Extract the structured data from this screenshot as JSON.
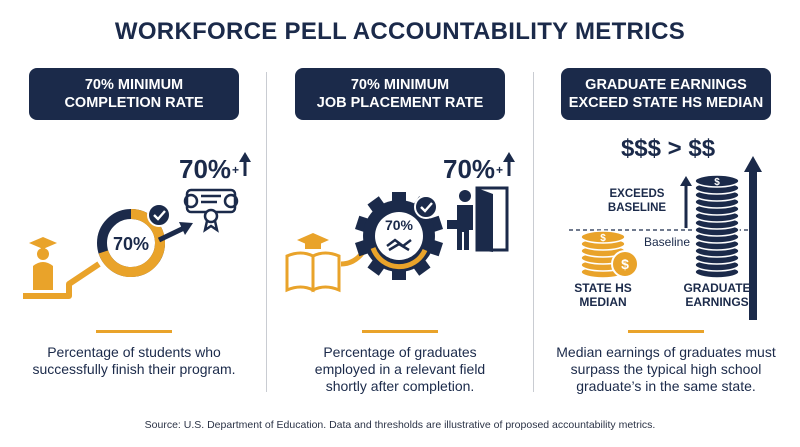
{
  "title": "WORKFORCE PELL ACCOUNTABILITY METRICS",
  "panels": [
    {
      "header": [
        "70% MINIMUM",
        "COMPLETION RATE"
      ],
      "big_value": "70%",
      "ring_value": "70%",
      "ring_fraction": 0.7,
      "description": [
        "Percentage of students who",
        "successfully finish their program."
      ]
    },
    {
      "header": [
        "70% MINIMUM",
        "JOB PLACEMENT RATE"
      ],
      "big_value": "70%",
      "gear_value": "70%",
      "description": [
        "Percentage of graduates",
        "employed in a relevant field",
        "shortly after completion."
      ]
    },
    {
      "header": [
        "GRADUATE EARNINGS",
        "EXCEED STATE HS MEDIAN"
      ],
      "comparison": "$$$ > $$",
      "exceeds_label": [
        "EXCEEDS",
        "BASELINE"
      ],
      "baseline_label": "Baseline",
      "left_stack_label": [
        "STATE HS",
        "MEDIAN"
      ],
      "right_stack_label": [
        "GRADUATE",
        "EARNINGS"
      ],
      "description": [
        "Median earnings of graduates must",
        "surpass the typical high school",
        "graduate’s in the same state."
      ]
    }
  ],
  "source": "Source: U.S. Department of Education. Data and thresholds are illustrative of proposed accountability metrics.",
  "colors": {
    "navy": "#1b2a4a",
    "gold": "#e9a32a",
    "gold_dark": "#c98414",
    "divider": "#c9ccd2"
  },
  "icons": [
    "graduate-icon",
    "diploma-icon",
    "check-icon",
    "book-icon",
    "handshake-icon",
    "gear-icon",
    "person-door-icon",
    "coin-stack-icon",
    "up-arrow-icon"
  ]
}
